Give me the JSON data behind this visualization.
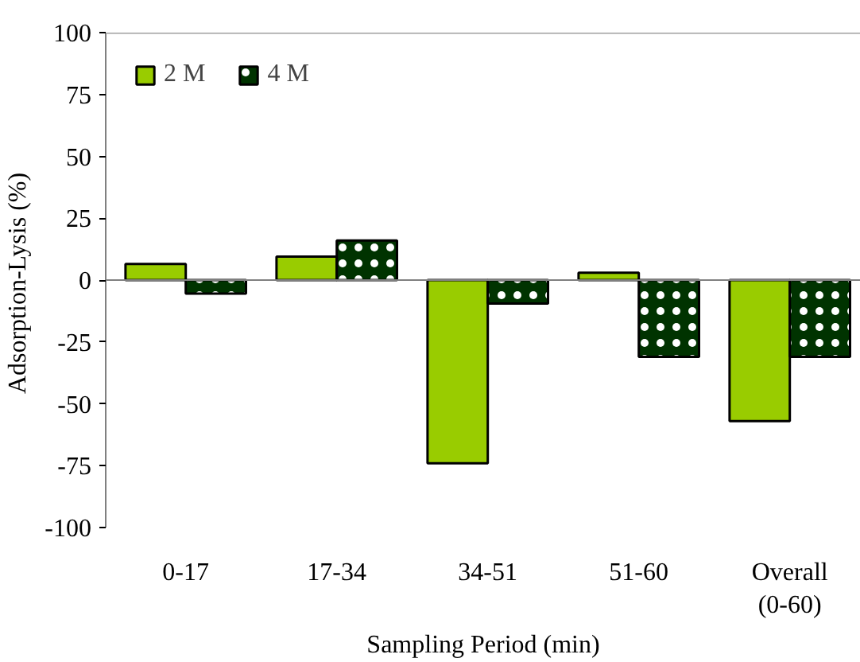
{
  "chart_data": {
    "type": "bar",
    "xlabel": "Sampling Period (min)",
    "ylabel": "Adsorption-Lysis  (%)",
    "categories": [
      "0-17",
      "17-34",
      "34-51",
      "51-60",
      "Overall\n(0-60)"
    ],
    "series": [
      {
        "name": "2 M",
        "color": "#99cc00",
        "values": [
          6.5,
          9.5,
          -74,
          3,
          -57
        ]
      },
      {
        "name": "4 M",
        "color": "#003300",
        "values": [
          -5.5,
          16,
          -9.5,
          -31,
          -31
        ]
      }
    ],
    "ylim": [
      -100,
      100
    ],
    "yticks": [
      -100,
      -75,
      -50,
      -25,
      0,
      25,
      50,
      75,
      100
    ],
    "legend": "top left"
  }
}
